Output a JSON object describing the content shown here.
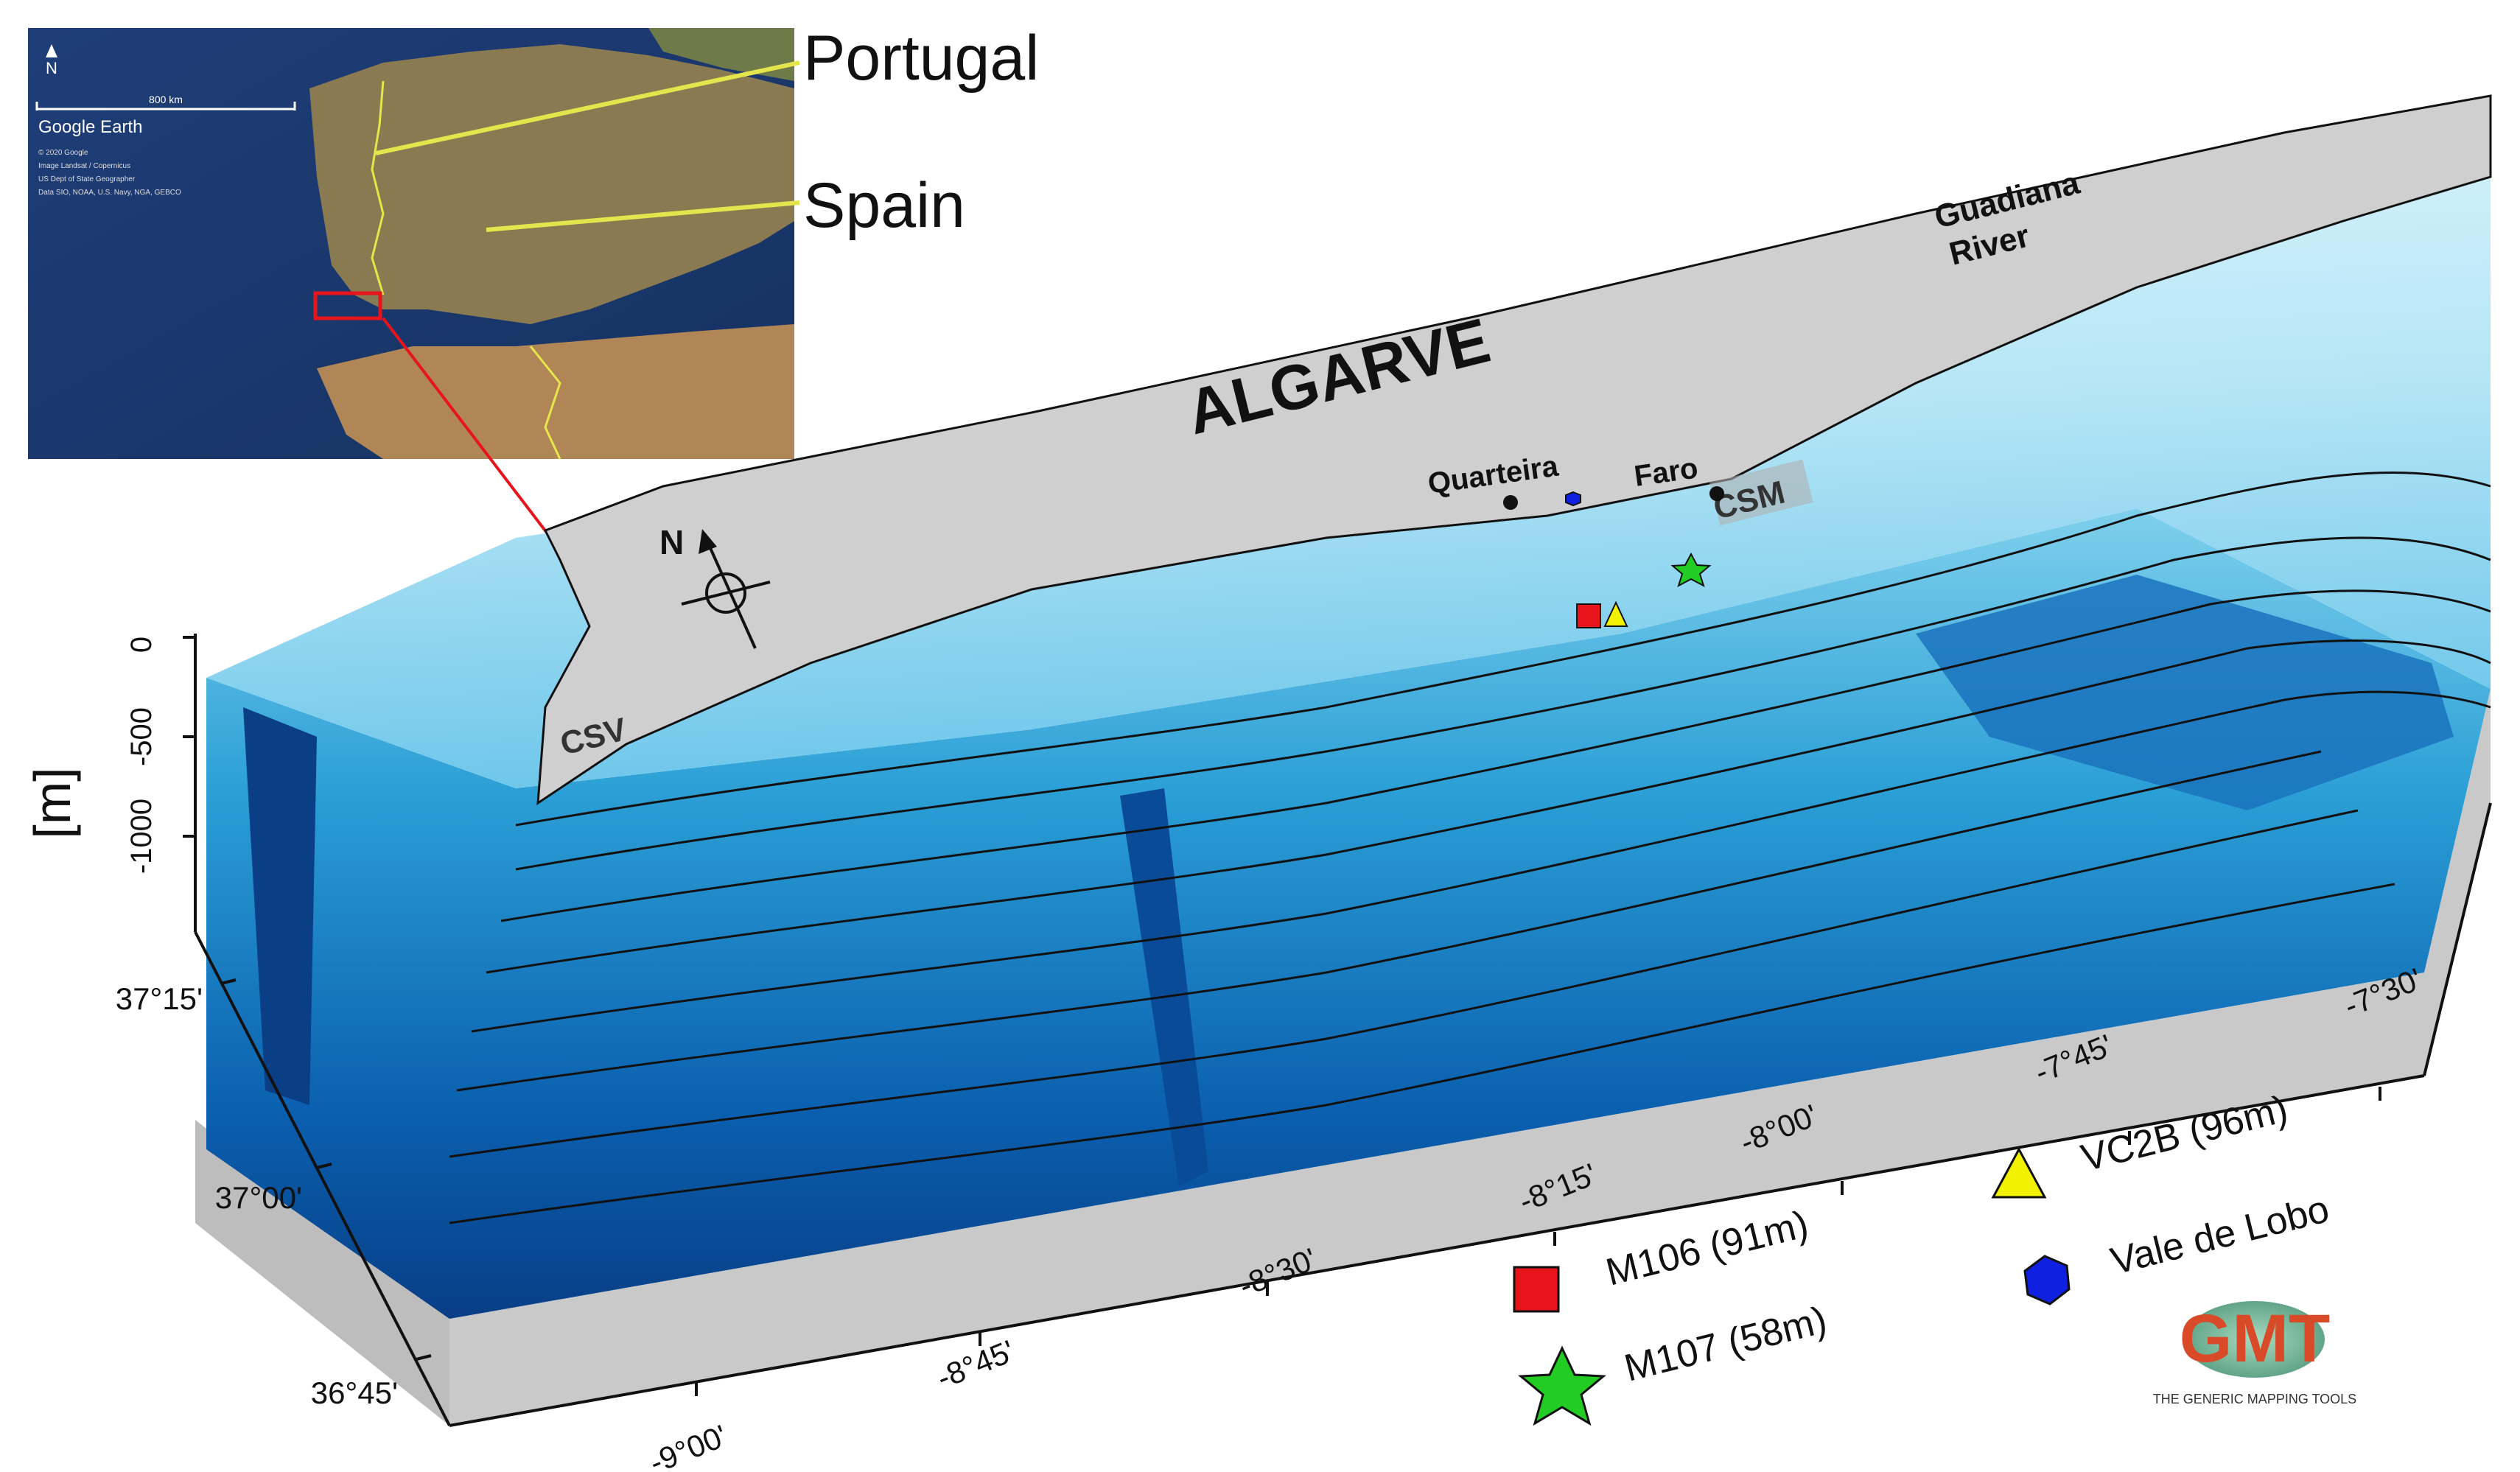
{
  "inset": {
    "country_labels": [
      "Portugal",
      "Spain"
    ],
    "scale_label": "800 km",
    "north_label": "N",
    "brand": "Google Earth",
    "attribution": [
      "© 2020 Google",
      "Image Landsat / Copernicus",
      "US Dept of State Geographer",
      "Data SIO, NOAA, U.S. Navy, NGA, GEBCO"
    ]
  },
  "map": {
    "region_label": "ALGARVE",
    "river_label_line1": "Guadiana",
    "river_label_line2": "River",
    "places": [
      "Quarteira",
      "Faro",
      "CSM",
      "CSV"
    ],
    "north_label": "N"
  },
  "axes": {
    "depth_unit": "[m]",
    "depth_ticks": [
      "0",
      "-500",
      "-1000"
    ],
    "lat_ticks": [
      "37°15'",
      "37°00'",
      "36°45'"
    ],
    "lon_ticks": [
      "-9°00'",
      "-8°45'",
      "-8°30'",
      "-8°15'",
      "-8°00'",
      "-7°45'",
      "-7°30'"
    ]
  },
  "legend": {
    "items": [
      {
        "label": "M106 (91m)",
        "symbol": "square",
        "color": "#e8141c"
      },
      {
        "label": "M107 (58m)",
        "symbol": "star",
        "color": "#22cc22"
      },
      {
        "label": "VC2B (96m)",
        "symbol": "triangle",
        "color": "#f2f200"
      },
      {
        "label": "Vale de Lobo",
        "symbol": "hexagon",
        "color": "#1020e0"
      }
    ]
  },
  "logo": {
    "text": "GMT",
    "caption": "THE GENERIC MAPPING TOOLS"
  },
  "colors": {
    "land": "#cfcfcf",
    "shelf": "#c9eef8",
    "slope_light": "#7fd0ec",
    "slope_mid": "#2b9fd6",
    "deep": "#0a5fae",
    "deepest": "#083e86",
    "side_wall": "#c9c9c9"
  }
}
